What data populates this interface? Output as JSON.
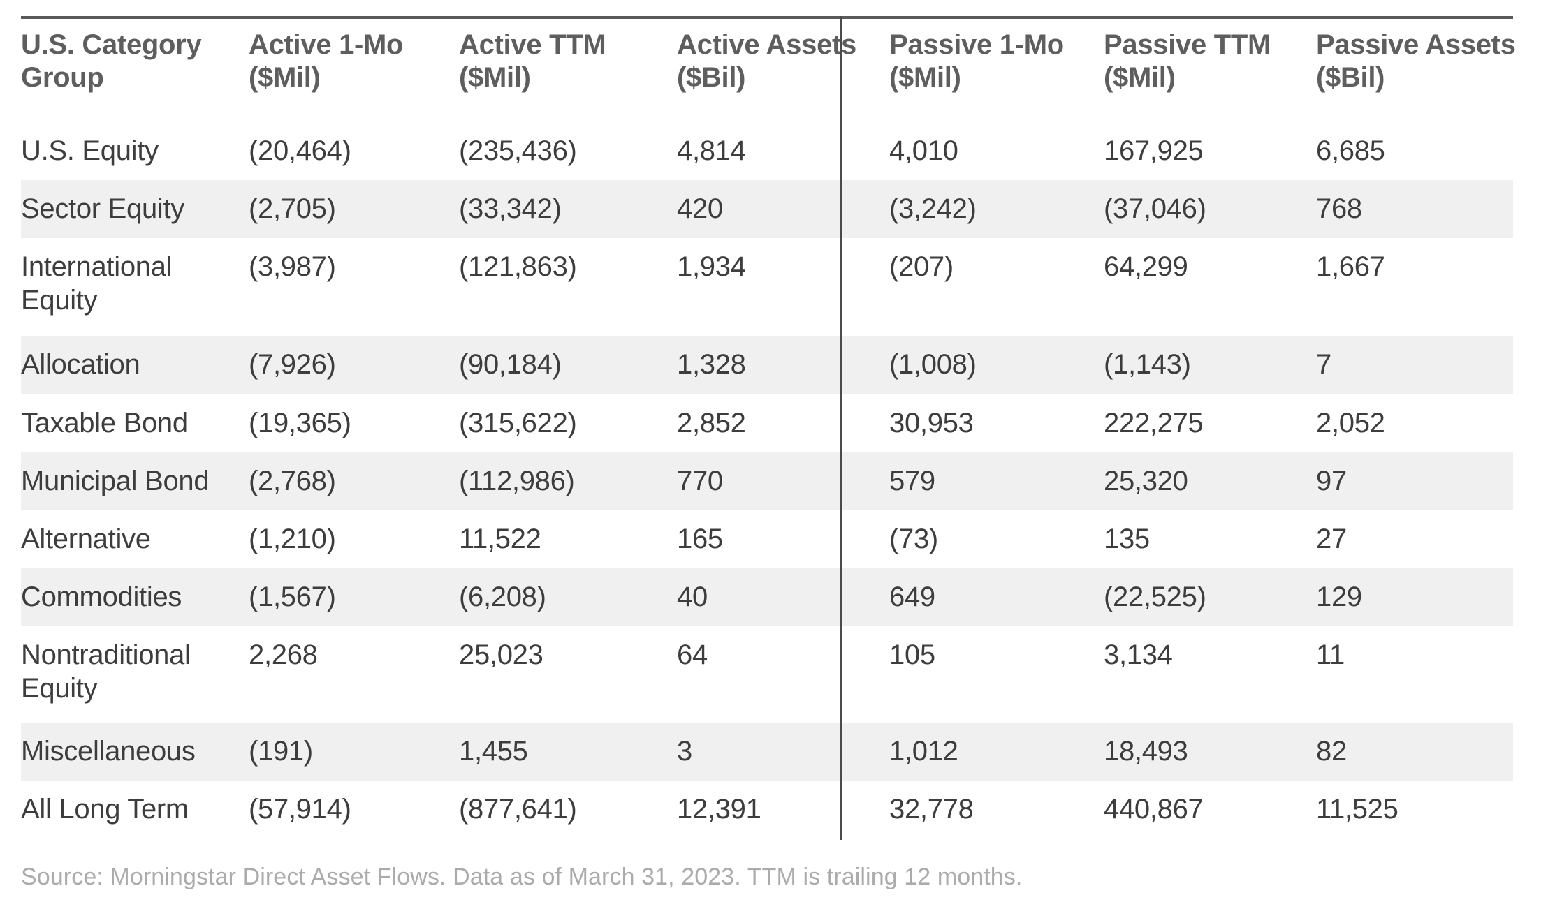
{
  "chart_data": {
    "type": "table",
    "columns": [
      "U.S. Category Group",
      "Active 1-Mo ($Mil)",
      "Active TTM ($Mil)",
      "Active Assets ($Bil)",
      "Passive 1-Mo ($Mil)",
      "Passive TTM ($Mil)",
      "Passive Assets ($Bil)"
    ],
    "rows": [
      [
        "U.S. Equity",
        "(20,464)",
        "(235,436)",
        "4,814",
        "4,010",
        "167,925",
        "6,685"
      ],
      [
        "Sector Equity",
        "(2,705)",
        "(33,342)",
        "420",
        "(3,242)",
        "(37,046)",
        "768"
      ],
      [
        "International Equity",
        "(3,987)",
        "(121,863)",
        "1,934",
        "(207)",
        "64,299",
        "1,667"
      ],
      [
        "Allocation",
        "(7,926)",
        "(90,184)",
        "1,328",
        "(1,008)",
        "(1,143)",
        "7"
      ],
      [
        "Taxable Bond",
        "(19,365)",
        "(315,622)",
        "2,852",
        "30,953",
        "222,275",
        "2,052"
      ],
      [
        "Municipal Bond",
        "(2,768)",
        "(112,986)",
        "770",
        "579",
        "25,320",
        "97"
      ],
      [
        "Alternative",
        "(1,210)",
        "11,522",
        "165",
        "(73)",
        "135",
        "27"
      ],
      [
        "Commodities",
        "(1,567)",
        "(6,208)",
        "40",
        "649",
        "(22,525)",
        "129"
      ],
      [
        "Nontraditional Equity",
        "2,268",
        "25,023",
        "64",
        "105",
        "3,134",
        "11"
      ],
      [
        "Miscellaneous",
        "(191)",
        "1,455",
        "3",
        "1,012",
        "18,493",
        "82"
      ],
      [
        "All Long Term",
        "(57,914)",
        "(877,641)",
        "12,391",
        "32,778",
        "440,867",
        "11,525"
      ]
    ]
  },
  "header": {
    "columns": [
      {
        "line1": "U.S. Category",
        "line2": "Group"
      },
      {
        "line1": "Active 1-Mo",
        "line2": "($Mil)"
      },
      {
        "line1": "Active TTM",
        "line2": "($Mil)"
      },
      {
        "line1": "Active Assets",
        "line2": "($Bil)"
      },
      {
        "line1": "Passive 1-Mo",
        "line2": "($Mil)"
      },
      {
        "line1": "Passive TTM",
        "line2": "($Mil)"
      },
      {
        "line1": "Passive Assets",
        "line2": "($Bil)"
      }
    ]
  },
  "footer": {
    "source_note": "Source: Morningstar Direct Asset Flows. Data as of March 31, 2023. TTM is trailing 12 months."
  },
  "colors": {
    "header_text": "#5e5e5e",
    "body_text": "#3d3d3d",
    "row_stripe": "#f0f0f0",
    "top_rule": "#5a5a5a",
    "divider": "#4b4b4b",
    "footnote_text": "#ababab"
  }
}
